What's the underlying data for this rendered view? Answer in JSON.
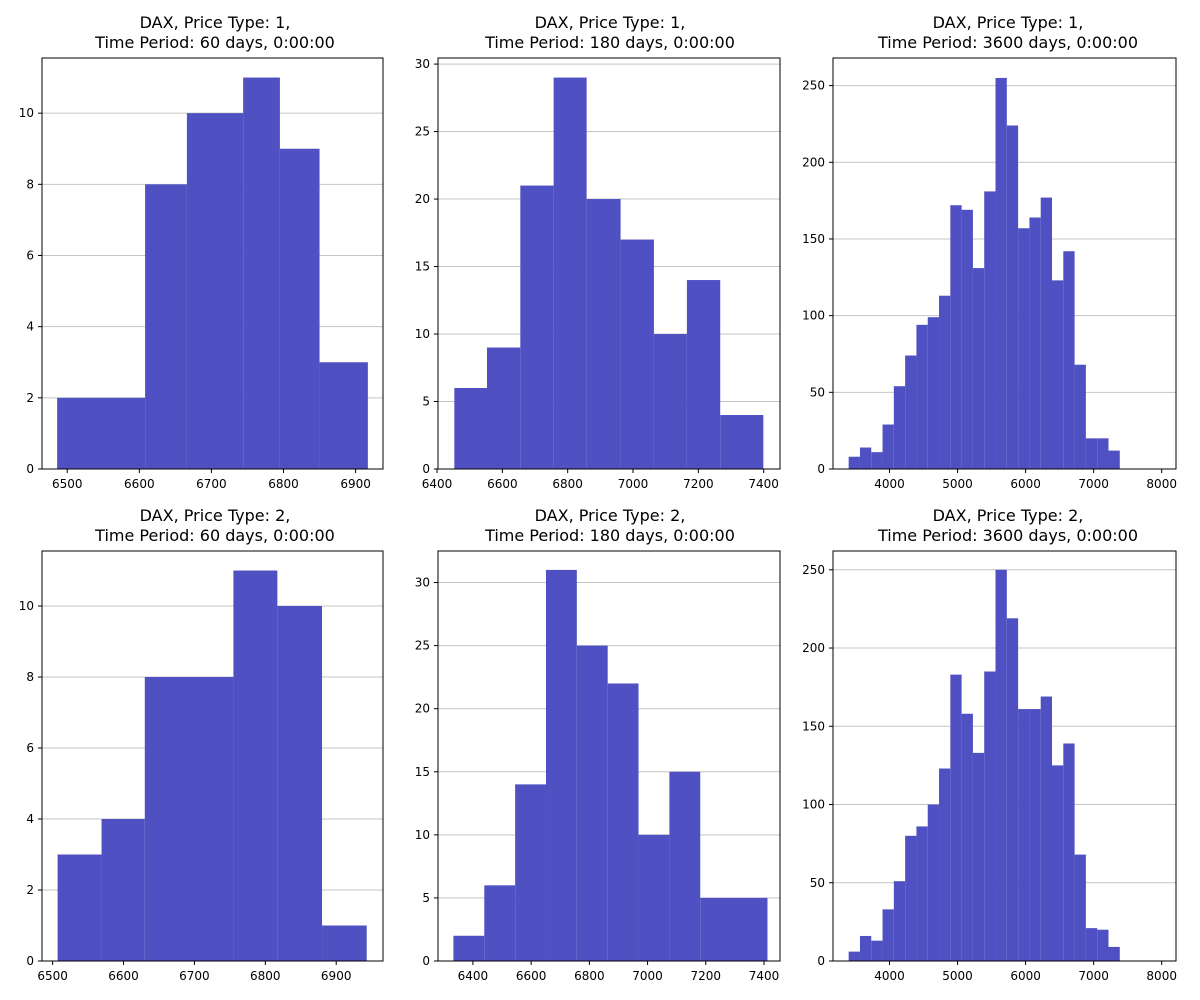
{
  "chart_data": [
    {
      "type": "bar",
      "title_lines": [
        "DAX, Price Type: 1,",
        "Time Period: 60 days, 0:00:00"
      ],
      "xlim": [
        6465,
        6938
      ],
      "ylim": [
        0,
        11.55
      ],
      "xticks": [
        6500,
        6600,
        6700,
        6800,
        6900
      ],
      "yticks": [
        0,
        2,
        4,
        6,
        8,
        10
      ],
      "grid": "horizontal",
      "color": "#4f51c3",
      "bins": [
        {
          "x0": 6486,
          "x1": 6608,
          "count": 2
        },
        {
          "x0": 6608,
          "x1": 6666,
          "count": 8
        },
        {
          "x0": 6666,
          "x1": 6744,
          "count": 10
        },
        {
          "x0": 6744,
          "x1": 6795,
          "count": 11
        },
        {
          "x0": 6795,
          "x1": 6850,
          "count": 9
        },
        {
          "x0": 6850,
          "x1": 6917,
          "count": 3
        }
      ]
    },
    {
      "type": "bar",
      "title_lines": [
        "DAX, Price Type: 1,",
        "Time Period: 180 days, 0:00:00"
      ],
      "xlim": [
        6403,
        7450
      ],
      "ylim": [
        0,
        30.45
      ],
      "xticks": [
        6400,
        6600,
        6800,
        7000,
        7200,
        7400
      ],
      "yticks": [
        0,
        5,
        10,
        15,
        20,
        25,
        30
      ],
      "grid": "horizontal",
      "color": "#4f51c3",
      "bins": [
        {
          "x0": 6453,
          "x1": 6553,
          "count": 6
        },
        {
          "x0": 6553,
          "x1": 6655,
          "count": 9
        },
        {
          "x0": 6655,
          "x1": 6757,
          "count": 21
        },
        {
          "x0": 6757,
          "x1": 6858,
          "count": 29
        },
        {
          "x0": 6858,
          "x1": 6962,
          "count": 20
        },
        {
          "x0": 6962,
          "x1": 7064,
          "count": 17
        },
        {
          "x0": 7064,
          "x1": 7165,
          "count": 10
        },
        {
          "x0": 7165,
          "x1": 7267,
          "count": 14
        },
        {
          "x0": 7267,
          "x1": 7399,
          "count": 4
        }
      ]
    },
    {
      "type": "bar",
      "title_lines": [
        "DAX, Price Type: 1,",
        "Time Period: 3600 days, 0:00:00"
      ],
      "xlim": [
        3170,
        8210
      ],
      "ylim": [
        0,
        268
      ],
      "xticks": [
        4000,
        5000,
        6000,
        7000,
        8000
      ],
      "yticks": [
        0,
        50,
        100,
        150,
        200,
        250
      ],
      "grid": "horizontal",
      "color": "#4f51c3",
      "bins": [
        {
          "x0": 3400,
          "x1": 3566,
          "count": 8
        },
        {
          "x0": 3566,
          "x1": 3732,
          "count": 14
        },
        {
          "x0": 3732,
          "x1": 3898,
          "count": 11
        },
        {
          "x0": 3898,
          "x1": 4064,
          "count": 29
        },
        {
          "x0": 4064,
          "x1": 4230,
          "count": 54
        },
        {
          "x0": 4230,
          "x1": 4396,
          "count": 74
        },
        {
          "x0": 4396,
          "x1": 4562,
          "count": 94
        },
        {
          "x0": 4562,
          "x1": 4728,
          "count": 99
        },
        {
          "x0": 4728,
          "x1": 4894,
          "count": 113
        },
        {
          "x0": 4894,
          "x1": 5060,
          "count": 172
        },
        {
          "x0": 5060,
          "x1": 5226,
          "count": 169
        },
        {
          "x0": 5226,
          "x1": 5392,
          "count": 131
        },
        {
          "x0": 5392,
          "x1": 5558,
          "count": 181
        },
        {
          "x0": 5558,
          "x1": 5724,
          "count": 255
        },
        {
          "x0": 5724,
          "x1": 5890,
          "count": 224
        },
        {
          "x0": 5890,
          "x1": 6056,
          "count": 157
        },
        {
          "x0": 6056,
          "x1": 6222,
          "count": 164
        },
        {
          "x0": 6222,
          "x1": 6388,
          "count": 177
        },
        {
          "x0": 6388,
          "x1": 6554,
          "count": 123
        },
        {
          "x0": 6554,
          "x1": 6720,
          "count": 142
        },
        {
          "x0": 6720,
          "x1": 6886,
          "count": 68
        },
        {
          "x0": 6886,
          "x1": 7052,
          "count": 20
        },
        {
          "x0": 7052,
          "x1": 7218,
          "count": 20
        },
        {
          "x0": 7218,
          "x1": 7384,
          "count": 12
        }
      ]
    },
    {
      "type": "bar",
      "title_lines": [
        "DAX, Price Type: 2,",
        "Time Period: 60 days, 0:00:00"
      ],
      "xlim": [
        6485,
        6966
      ],
      "ylim": [
        0,
        11.55
      ],
      "xticks": [
        6500,
        6600,
        6700,
        6800,
        6900
      ],
      "yticks": [
        0,
        2,
        4,
        6,
        8,
        10
      ],
      "grid": "horizontal",
      "color": "#4f51c3",
      "bins": [
        {
          "x0": 6507,
          "x1": 6569,
          "count": 3
        },
        {
          "x0": 6569,
          "x1": 6630,
          "count": 4
        },
        {
          "x0": 6630,
          "x1": 6755,
          "count": 8
        },
        {
          "x0": 6755,
          "x1": 6817,
          "count": 11
        },
        {
          "x0": 6817,
          "x1": 6880,
          "count": 10
        },
        {
          "x0": 6880,
          "x1": 6943,
          "count": 1
        }
      ]
    },
    {
      "type": "bar",
      "title_lines": [
        "DAX, Price Type: 2,",
        "Time Period: 180 days, 0:00:00"
      ],
      "xlim": [
        6280,
        7455
      ],
      "ylim": [
        0,
        32.5
      ],
      "xticks": [
        6400,
        6600,
        6800,
        7000,
        7200,
        7400
      ],
      "yticks": [
        0,
        5,
        10,
        15,
        20,
        25,
        30
      ],
      "grid": "horizontal",
      "color": "#4f51c3",
      "bins": [
        {
          "x0": 6333,
          "x1": 6439,
          "count": 2
        },
        {
          "x0": 6439,
          "x1": 6545,
          "count": 6
        },
        {
          "x0": 6545,
          "x1": 6651,
          "count": 14
        },
        {
          "x0": 6651,
          "x1": 6757,
          "count": 31
        },
        {
          "x0": 6757,
          "x1": 6863,
          "count": 25
        },
        {
          "x0": 6863,
          "x1": 6969,
          "count": 22
        },
        {
          "x0": 6969,
          "x1": 7075,
          "count": 10
        },
        {
          "x0": 7075,
          "x1": 7181,
          "count": 15
        },
        {
          "x0": 7181,
          "x1": 7412,
          "count": 5
        }
      ]
    },
    {
      "type": "bar",
      "title_lines": [
        "DAX, Price Type: 2,",
        "Time Period: 3600 days, 0:00:00"
      ],
      "xlim": [
        3170,
        8210
      ],
      "ylim": [
        0,
        262
      ],
      "xticks": [
        4000,
        5000,
        6000,
        7000,
        8000
      ],
      "yticks": [
        0,
        50,
        100,
        150,
        200,
        250
      ],
      "grid": "horizontal",
      "color": "#4f51c3",
      "bins": [
        {
          "x0": 3400,
          "x1": 3566,
          "count": 6
        },
        {
          "x0": 3566,
          "x1": 3732,
          "count": 16
        },
        {
          "x0": 3732,
          "x1": 3898,
          "count": 13
        },
        {
          "x0": 3898,
          "x1": 4064,
          "count": 33
        },
        {
          "x0": 4064,
          "x1": 4230,
          "count": 51
        },
        {
          "x0": 4230,
          "x1": 4396,
          "count": 80
        },
        {
          "x0": 4396,
          "x1": 4562,
          "count": 86
        },
        {
          "x0": 4562,
          "x1": 4728,
          "count": 100
        },
        {
          "x0": 4728,
          "x1": 4894,
          "count": 123
        },
        {
          "x0": 4894,
          "x1": 5060,
          "count": 183
        },
        {
          "x0": 5060,
          "x1": 5226,
          "count": 158
        },
        {
          "x0": 5226,
          "x1": 5392,
          "count": 133
        },
        {
          "x0": 5392,
          "x1": 5558,
          "count": 185
        },
        {
          "x0": 5558,
          "x1": 5724,
          "count": 250
        },
        {
          "x0": 5724,
          "x1": 5890,
          "count": 219
        },
        {
          "x0": 5890,
          "x1": 6056,
          "count": 161
        },
        {
          "x0": 6056,
          "x1": 6222,
          "count": 161
        },
        {
          "x0": 6222,
          "x1": 6388,
          "count": 169
        },
        {
          "x0": 6388,
          "x1": 6554,
          "count": 125
        },
        {
          "x0": 6554,
          "x1": 6720,
          "count": 139
        },
        {
          "x0": 6720,
          "x1": 6886,
          "count": 68
        },
        {
          "x0": 6886,
          "x1": 7052,
          "count": 21
        },
        {
          "x0": 7052,
          "x1": 7218,
          "count": 20
        },
        {
          "x0": 7218,
          "x1": 7384,
          "count": 9
        }
      ]
    }
  ]
}
